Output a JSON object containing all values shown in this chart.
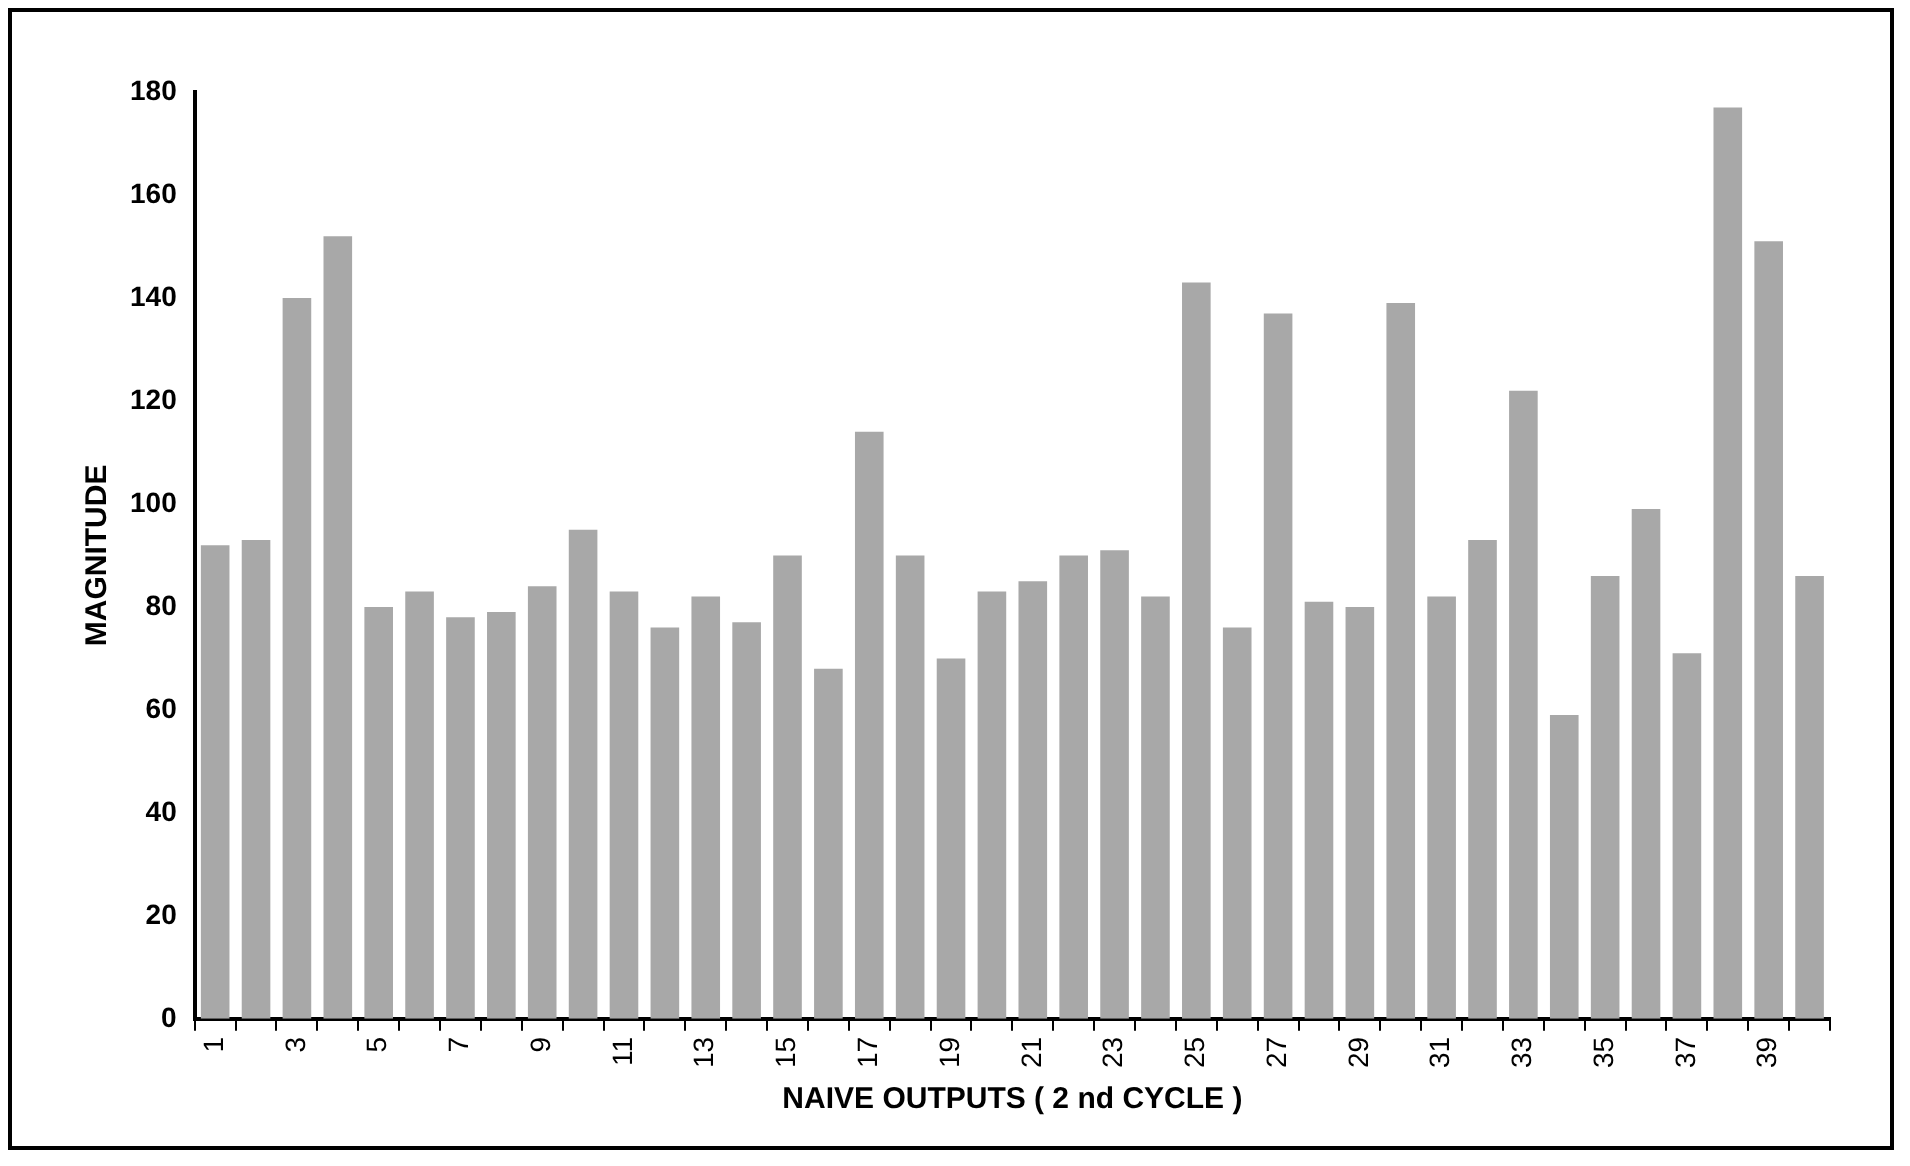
{
  "chart_data": {
    "type": "bar",
    "xlabel": "NAIVE OUTPUTS ( 2 nd CYCLE )",
    "ylabel": "MAGNITUDE",
    "categories": [
      "1",
      null,
      "3",
      null,
      "5",
      null,
      "7",
      null,
      "9",
      null,
      "11",
      null,
      "13",
      null,
      "15",
      null,
      "17",
      null,
      "19",
      null,
      "21",
      null,
      "23",
      null,
      "25",
      null,
      "27",
      null,
      "29",
      null,
      "31",
      null,
      "33",
      null,
      "35",
      null,
      "37",
      null,
      "39",
      null
    ],
    "values": [
      92,
      93,
      140,
      152,
      80,
      83,
      78,
      79,
      84,
      95,
      83,
      76,
      82,
      77,
      90,
      68,
      114,
      90,
      70,
      83,
      85,
      90,
      91,
      82,
      143,
      76,
      137,
      81,
      80,
      139,
      82,
      93,
      122,
      59,
      86,
      99,
      71,
      177,
      151,
      86
    ],
    "color": "#a8a8a8",
    "ylim": [
      0,
      180
    ],
    "yticks": [
      0,
      20,
      40,
      60,
      80,
      100,
      120,
      140,
      160,
      180
    ],
    "grid": false,
    "legend": false
  }
}
